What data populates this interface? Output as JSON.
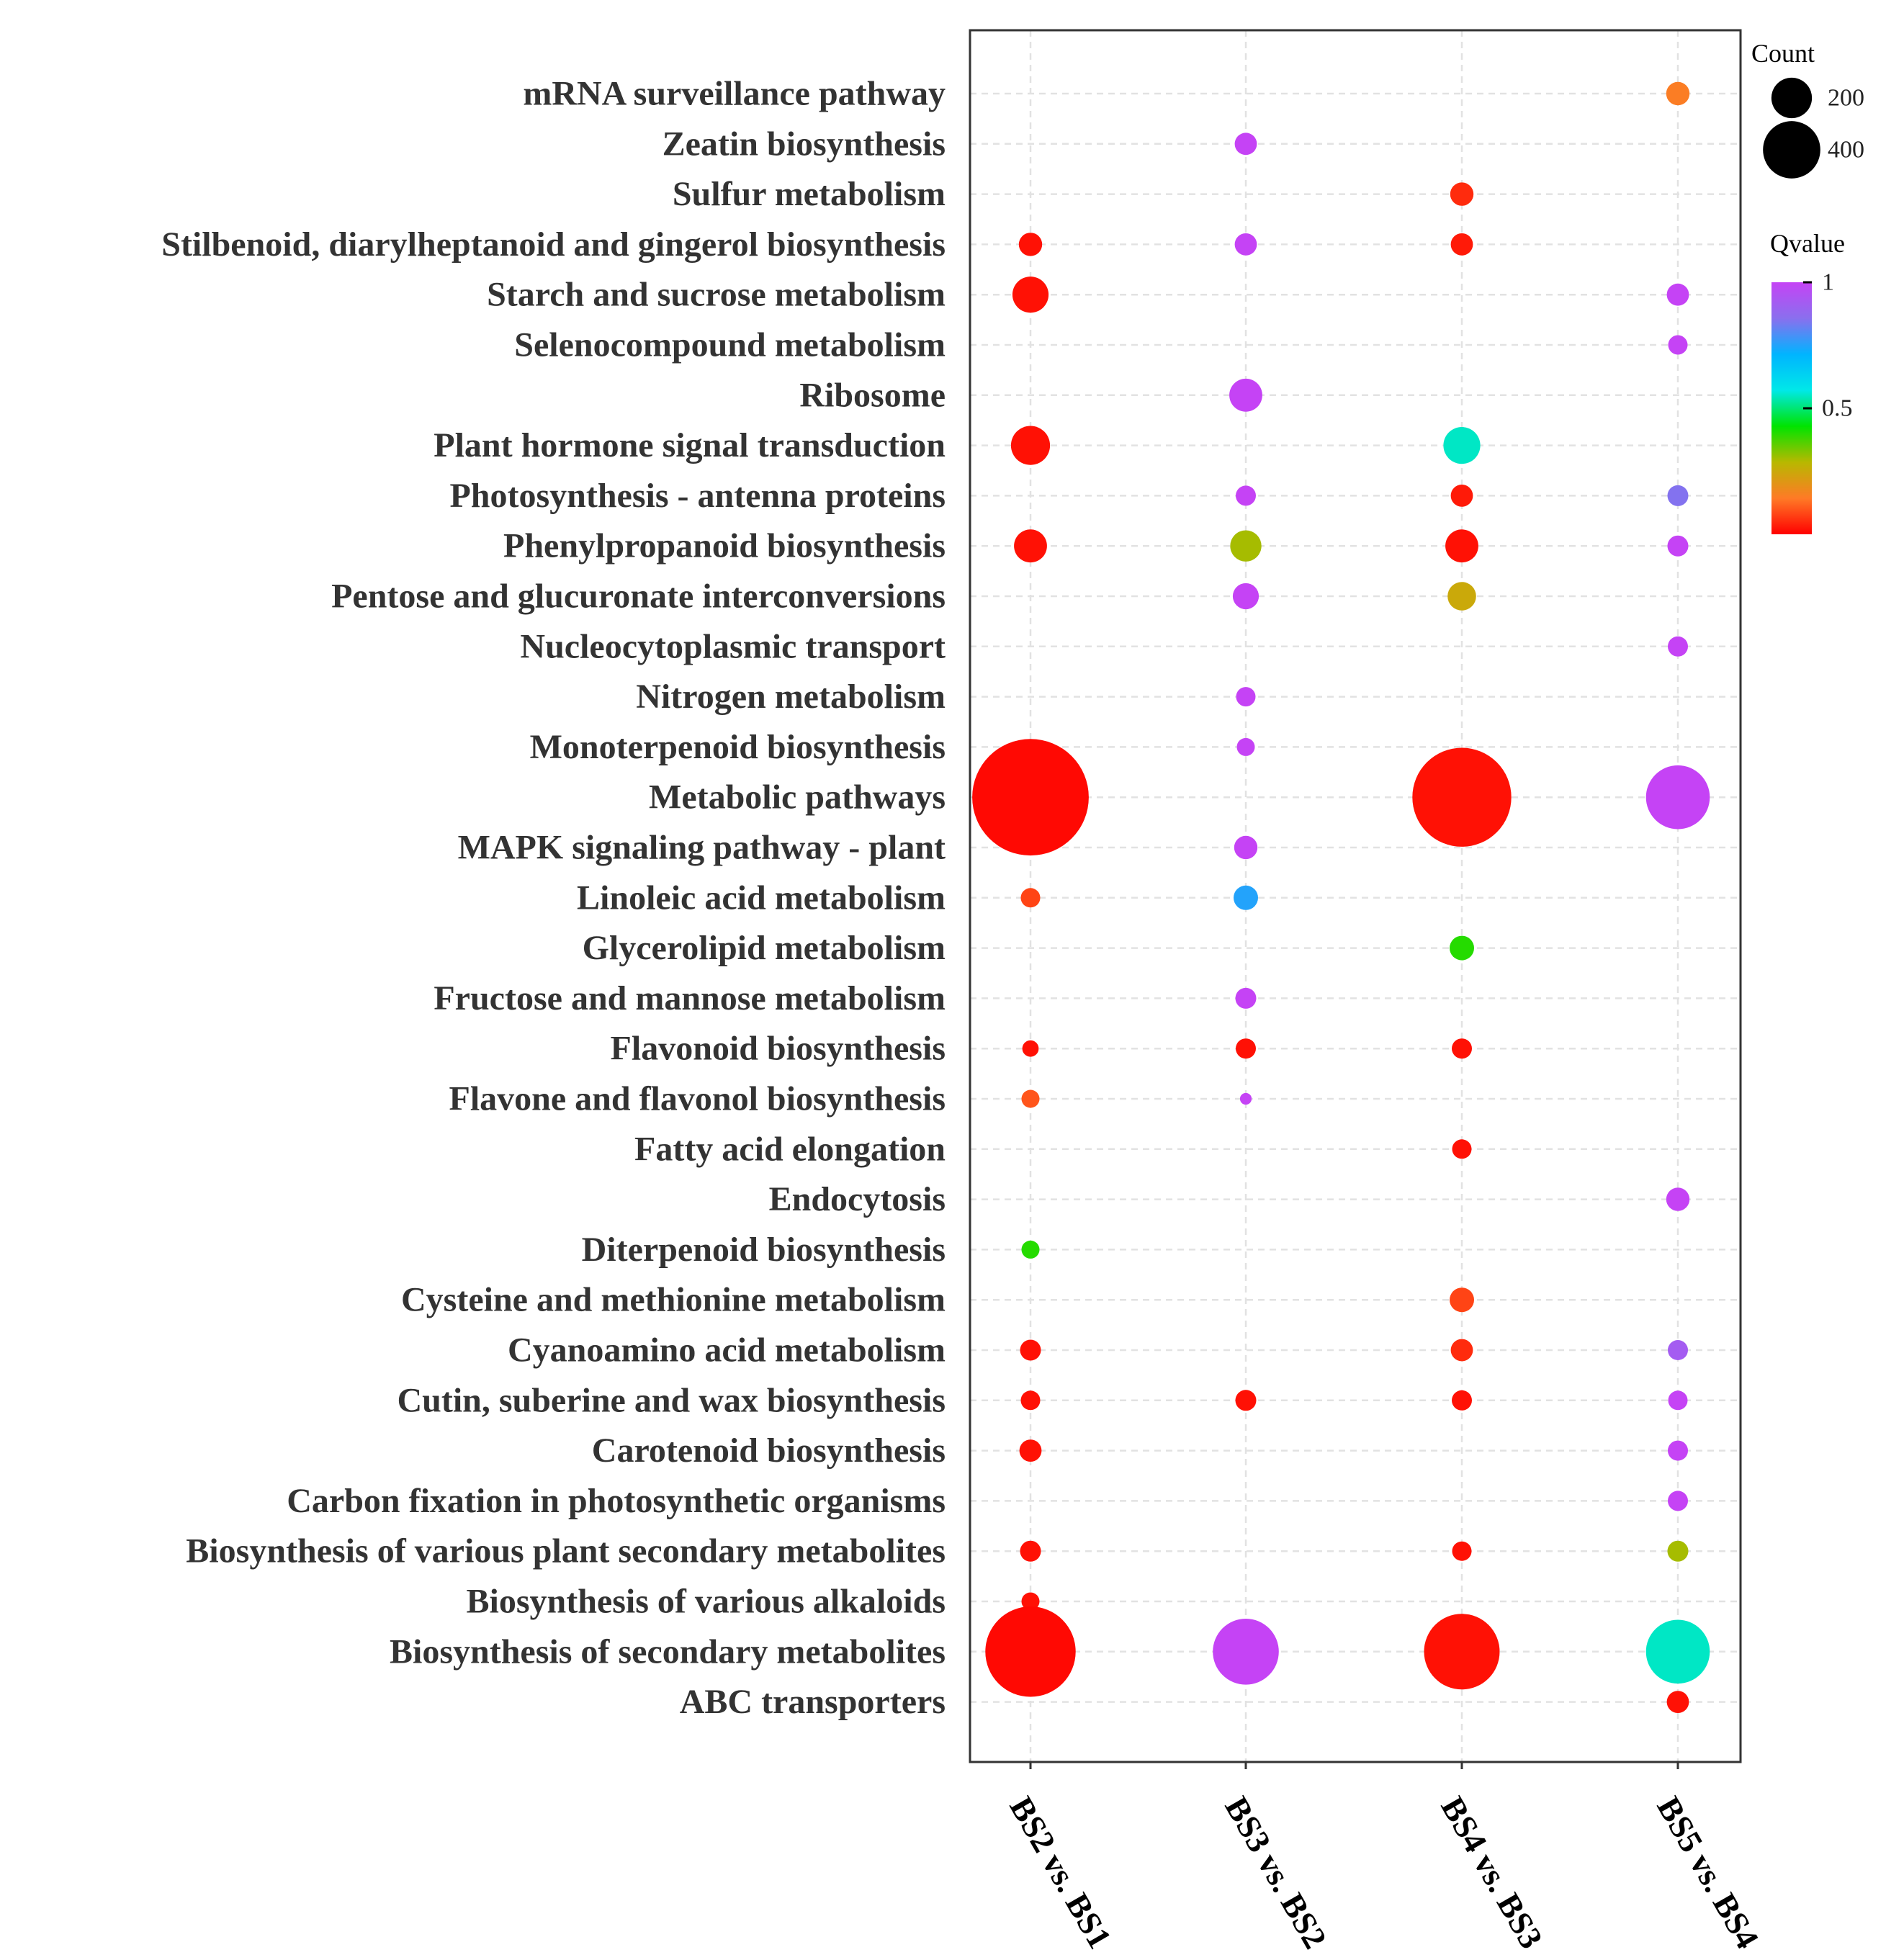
{
  "chart_data": {
    "type": "scatter",
    "subtype": "bubble",
    "title": "",
    "xlabel": "",
    "ylabel": "",
    "x_categories": [
      "BS2 vs. BS1",
      "BS3 vs. BS2",
      "BS4 vs. BS3",
      "BS5 vs. BS4"
    ],
    "y_categories": [
      "mRNA surveillance pathway",
      "Zeatin biosynthesis",
      "Sulfur metabolism",
      "Stilbenoid, diarylheptanoid and gingerol biosynthesis",
      "Starch and sucrose metabolism",
      "Selenocompound metabolism",
      "Ribosome",
      "Plant hormone signal transduction",
      "Photosynthesis - antenna proteins",
      "Phenylpropanoid biosynthesis",
      "Pentose and glucuronate interconversions",
      "Nucleocytoplasmic transport",
      "Nitrogen metabolism",
      "Monoterpenoid biosynthesis",
      "Metabolic pathways",
      "MAPK signaling pathway - plant",
      "Linoleic acid metabolism",
      "Glycerolipid metabolism",
      "Fructose and mannose metabolism",
      "Flavonoid biosynthesis",
      "Flavone and flavonol biosynthesis",
      "Fatty acid elongation",
      "Endocytosis",
      "Diterpenoid biosynthesis",
      "Cysteine and methionine metabolism",
      "Cyanoamino acid metabolism",
      "Cutin, suberine and wax biosynthesis",
      "Carotenoid biosynthesis",
      "Carbon fixation in photosynthetic organisms",
      "Biosynthesis of various plant secondary metabolites",
      "Biosynthesis of various alkaloids",
      "Biosynthesis of secondary metabolites",
      "ABC transporters"
    ],
    "points": [
      {
        "x": "BS5 vs. BS4",
        "y": "mRNA surveillance pathway",
        "count": 20,
        "qvalue": 0.15
      },
      {
        "x": "BS3 vs. BS2",
        "y": "Zeatin biosynthesis",
        "count": 18,
        "qvalue": 1.0
      },
      {
        "x": "BS4 vs. BS3",
        "y": "Sulfur metabolism",
        "count": 20,
        "qvalue": 0.05
      },
      {
        "x": "BS2 vs. BS1",
        "y": "Stilbenoid, diarylheptanoid and gingerol biosynthesis",
        "count": 20,
        "qvalue": 0.02
      },
      {
        "x": "BS3 vs. BS2",
        "y": "Stilbenoid, diarylheptanoid and gingerol biosynthesis",
        "count": 18,
        "qvalue": 1.0
      },
      {
        "x": "BS4 vs. BS3",
        "y": "Stilbenoid, diarylheptanoid and gingerol biosynthesis",
        "count": 18,
        "qvalue": 0.03
      },
      {
        "x": "BS2 vs. BS1",
        "y": "Starch and sucrose metabolism",
        "count": 48,
        "qvalue": 0.02
      },
      {
        "x": "BS5 vs. BS4",
        "y": "Starch and sucrose metabolism",
        "count": 18,
        "qvalue": 1.0
      },
      {
        "x": "BS5 vs. BS4",
        "y": "Selenocompound metabolism",
        "count": 14,
        "qvalue": 1.0
      },
      {
        "x": "BS3 vs. BS2",
        "y": "Ribosome",
        "count": 40,
        "qvalue": 1.0
      },
      {
        "x": "BS2 vs. BS1",
        "y": "Plant hormone signal transduction",
        "count": 56,
        "qvalue": 0.02
      },
      {
        "x": "BS4 vs. BS3",
        "y": "Plant hormone signal transduction",
        "count": 50,
        "qvalue": 0.55
      },
      {
        "x": "BS3 vs. BS2",
        "y": "Photosynthesis - antenna proteins",
        "count": 15,
        "qvalue": 1.0
      },
      {
        "x": "BS4 vs. BS3",
        "y": "Photosynthesis - antenna proteins",
        "count": 18,
        "qvalue": 0.03
      },
      {
        "x": "BS5 vs. BS4",
        "y": "Photosynthesis - antenna proteins",
        "count": 16,
        "qvalue": 0.85
      },
      {
        "x": "BS2 vs. BS1",
        "y": "Phenylpropanoid biosynthesis",
        "count": 40,
        "qvalue": 0.02
      },
      {
        "x": "BS3 vs. BS2",
        "y": "Phenylpropanoid biosynthesis",
        "count": 36,
        "qvalue": 0.3
      },
      {
        "x": "BS4 vs. BS3",
        "y": "Phenylpropanoid biosynthesis",
        "count": 40,
        "qvalue": 0.02
      },
      {
        "x": "BS5 vs. BS4",
        "y": "Phenylpropanoid biosynthesis",
        "count": 16,
        "qvalue": 1.0
      },
      {
        "x": "BS3 vs. BS2",
        "y": "Pentose and glucuronate interconversions",
        "count": 25,
        "qvalue": 1.0
      },
      {
        "x": "BS4 vs. BS3",
        "y": "Pentose and glucuronate interconversions",
        "count": 30,
        "qvalue": 0.25
      },
      {
        "x": "BS5 vs. BS4",
        "y": "Nucleocytoplasmic transport",
        "count": 15,
        "qvalue": 1.0
      },
      {
        "x": "BS3 vs. BS2",
        "y": "Nitrogen metabolism",
        "count": 14,
        "qvalue": 1.0
      },
      {
        "x": "BS3 vs. BS2",
        "y": "Monoterpenoid biosynthesis",
        "count": 12,
        "qvalue": 1.0
      },
      {
        "x": "BS2 vs. BS1",
        "y": "Metabolic pathways",
        "count": 500,
        "qvalue": 0.01
      },
      {
        "x": "BS4 vs. BS3",
        "y": "Metabolic pathways",
        "count": 360,
        "qvalue": 0.02
      },
      {
        "x": "BS5 vs. BS4",
        "y": "Metabolic pathways",
        "count": 150,
        "qvalue": 1.0
      },
      {
        "x": "BS3 vs. BS2",
        "y": "MAPK signaling pathway - plant",
        "count": 20,
        "qvalue": 1.0
      },
      {
        "x": "BS2 vs. BS1",
        "y": "Linoleic acid metabolism",
        "count": 14,
        "qvalue": 0.08
      },
      {
        "x": "BS3 vs. BS2",
        "y": "Linoleic acid metabolism",
        "count": 22,
        "qvalue": 0.75
      },
      {
        "x": "BS4 vs. BS3",
        "y": "Glycerolipid metabolism",
        "count": 22,
        "qvalue": 0.4
      },
      {
        "x": "BS3 vs. BS2",
        "y": "Fructose and mannose metabolism",
        "count": 16,
        "qvalue": 1.0
      },
      {
        "x": "BS2 vs. BS1",
        "y": "Flavonoid biosynthesis",
        "count": 10,
        "qvalue": 0.02
      },
      {
        "x": "BS3 vs. BS2",
        "y": "Flavonoid biosynthesis",
        "count": 15,
        "qvalue": 0.02
      },
      {
        "x": "BS4 vs. BS3",
        "y": "Flavonoid biosynthesis",
        "count": 15,
        "qvalue": 0.02
      },
      {
        "x": "BS2 vs. BS1",
        "y": "Flavone and flavonol biosynthesis",
        "count": 12,
        "qvalue": 0.1
      },
      {
        "x": "BS3 vs. BS2",
        "y": "Flavone and flavonol biosynthesis",
        "count": 5,
        "qvalue": 1.0
      },
      {
        "x": "BS4 vs. BS3",
        "y": "Fatty acid elongation",
        "count": 14,
        "qvalue": 0.02
      },
      {
        "x": "BS5 vs. BS4",
        "y": "Endocytosis",
        "count": 20,
        "qvalue": 1.0
      },
      {
        "x": "BS2 vs. BS1",
        "y": "Diterpenoid biosynthesis",
        "count": 12,
        "qvalue": 0.4
      },
      {
        "x": "BS4 vs. BS3",
        "y": "Cysteine and methionine metabolism",
        "count": 22,
        "qvalue": 0.08
      },
      {
        "x": "BS2 vs. BS1",
        "y": "Cyanoamino acid metabolism",
        "count": 16,
        "qvalue": 0.02
      },
      {
        "x": "BS4 vs. BS3",
        "y": "Cyanoamino acid metabolism",
        "count": 18,
        "qvalue": 0.05
      },
      {
        "x": "BS5 vs. BS4",
        "y": "Cyanoamino acid metabolism",
        "count": 15,
        "qvalue": 0.92
      },
      {
        "x": "BS2 vs. BS1",
        "y": "Cutin, suberine and wax biosynthesis",
        "count": 14,
        "qvalue": 0.02
      },
      {
        "x": "BS3 vs. BS2",
        "y": "Cutin, suberine and wax biosynthesis",
        "count": 16,
        "qvalue": 0.02
      },
      {
        "x": "BS4 vs. BS3",
        "y": "Cutin, suberine and wax biosynthesis",
        "count": 15,
        "qvalue": 0.02
      },
      {
        "x": "BS5 vs. BS4",
        "y": "Cutin, suberine and wax biosynthesis",
        "count": 14,
        "qvalue": 1.0
      },
      {
        "x": "BS2 vs. BS1",
        "y": "Carotenoid biosynthesis",
        "count": 18,
        "qvalue": 0.02
      },
      {
        "x": "BS5 vs. BS4",
        "y": "Carotenoid biosynthesis",
        "count": 15,
        "qvalue": 1.0
      },
      {
        "x": "BS5 vs. BS4",
        "y": "Carbon fixation in photosynthetic organisms",
        "count": 15,
        "qvalue": 1.0
      },
      {
        "x": "BS2 vs. BS1",
        "y": "Biosynthesis of various plant secondary metabolites",
        "count": 16,
        "qvalue": 0.02
      },
      {
        "x": "BS4 vs. BS3",
        "y": "Biosynthesis of various plant secondary metabolites",
        "count": 14,
        "qvalue": 0.02
      },
      {
        "x": "BS5 vs. BS4",
        "y": "Biosynthesis of various plant secondary metabolites",
        "count": 16,
        "qvalue": 0.3
      },
      {
        "x": "BS2 vs. BS1",
        "y": "Biosynthesis of various alkaloids",
        "count": 12,
        "qvalue": 0.02
      },
      {
        "x": "BS2 vs. BS1",
        "y": "Biosynthesis of secondary metabolites",
        "count": 300,
        "qvalue": 0.01
      },
      {
        "x": "BS3 vs. BS2",
        "y": "Biosynthesis of secondary metabolites",
        "count": 160,
        "qvalue": 1.0
      },
      {
        "x": "BS4 vs. BS3",
        "y": "Biosynthesis of secondary metabolites",
        "count": 210,
        "qvalue": 0.02
      },
      {
        "x": "BS5 vs. BS4",
        "y": "Biosynthesis of secondary metabolites",
        "count": 150,
        "qvalue": 0.55
      },
      {
        "x": "BS5 vs. BS4",
        "y": "ABC transporters",
        "count": 18,
        "qvalue": 0.02
      }
    ],
    "size_legend": {
      "title": "Count",
      "values": [
        200,
        400
      ]
    },
    "color_legend": {
      "title": "Qvalue",
      "range": [
        0,
        1
      ],
      "ticks": [
        {
          "value": 0.5,
          "label": "0.5"
        },
        {
          "value": 1,
          "label": "1"
        }
      ],
      "gradient": [
        "#ff0000",
        "#ff7a26",
        "#b8b800",
        "#00e400",
        "#00e8e8",
        "#00b4ff",
        "#8a6fee",
        "#c543f5"
      ]
    },
    "grid": true,
    "legend_position": "right"
  }
}
